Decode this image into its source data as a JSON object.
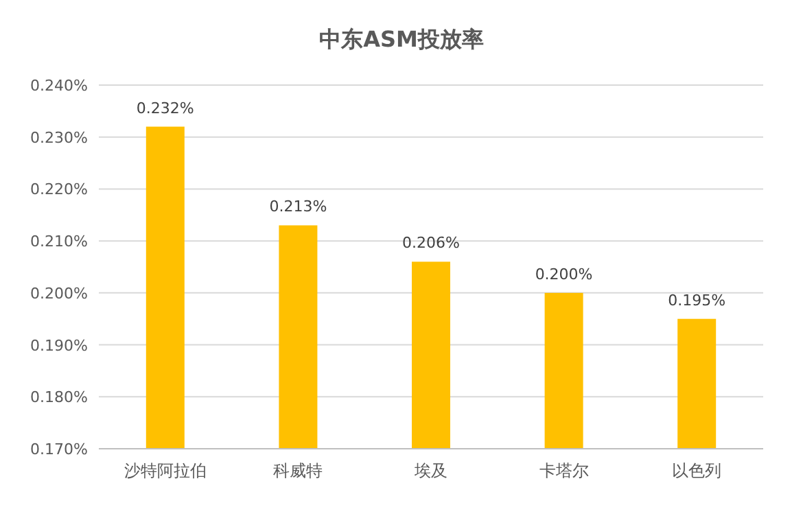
{
  "chart_data": {
    "type": "bar",
    "title": "中东ASM投放率",
    "categories": [
      "沙特阿拉伯",
      "科威特",
      "埃及",
      "卡塔尔",
      "以色列"
    ],
    "values": [
      0.232,
      0.213,
      0.206,
      0.2,
      0.195
    ],
    "value_labels": [
      "0.232%",
      "0.213%",
      "0.206%",
      "0.200%",
      "0.195%"
    ],
    "color": "#ffc000",
    "ylim": [
      0.17,
      0.24
    ],
    "yticks": [
      {
        "value": 0.17,
        "label": "0.170%"
      },
      {
        "value": 0.18,
        "label": "0.180%"
      },
      {
        "value": 0.19,
        "label": "0.190%"
      },
      {
        "value": 0.2,
        "label": "0.200%"
      },
      {
        "value": 0.21,
        "label": "0.210%"
      },
      {
        "value": 0.22,
        "label": "0.220%"
      },
      {
        "value": 0.23,
        "label": "0.230%"
      },
      {
        "value": 0.24,
        "label": "0.240%"
      }
    ],
    "grid": "y"
  }
}
